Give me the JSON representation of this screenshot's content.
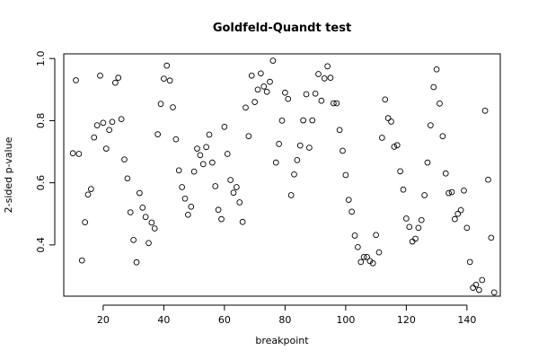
{
  "chart_data": {
    "type": "scatter",
    "title": "Goldfeld-Quandt test",
    "xlabel": "breakpoint",
    "ylabel": "2-sided p-value",
    "xlim": [
      7,
      151
    ],
    "ylim": [
      0.235,
      1.015
    ],
    "xticks": [
      20,
      40,
      60,
      80,
      100,
      120,
      140
    ],
    "yticks": [
      0.4,
      0.6,
      0.8,
      1.0
    ],
    "ytick_labels": [
      "0.4",
      "0.6",
      "0.8",
      "1.0"
    ],
    "grid": false,
    "legend": "none",
    "x": [
      10,
      11,
      12,
      13,
      14,
      15,
      16,
      17,
      18,
      19,
      20,
      21,
      22,
      23,
      24,
      25,
      26,
      27,
      28,
      29,
      30,
      31,
      32,
      33,
      34,
      35,
      36,
      37,
      38,
      39,
      40,
      41,
      42,
      43,
      44,
      45,
      46,
      47,
      48,
      49,
      50,
      51,
      52,
      53,
      54,
      55,
      56,
      57,
      58,
      59,
      60,
      61,
      62,
      63,
      64,
      65,
      66,
      67,
      68,
      69,
      70,
      71,
      72,
      73,
      74,
      75,
      76,
      77,
      78,
      79,
      80,
      81,
      82,
      83,
      84,
      85,
      86,
      87,
      88,
      89,
      90,
      91,
      92,
      93,
      94,
      95,
      96,
      97,
      98,
      99,
      100,
      101,
      102,
      103,
      104,
      105,
      106,
      107,
      108,
      109,
      110,
      111,
      112,
      113,
      114,
      115,
      116,
      117,
      118,
      119,
      120,
      121,
      122,
      123,
      124,
      125,
      126,
      127,
      128,
      129,
      130,
      131,
      132,
      133,
      134,
      135,
      136,
      137,
      138,
      139,
      140,
      141,
      142,
      143,
      144,
      145,
      146,
      147,
      148,
      149
    ],
    "y": [
      0.695,
      0.93,
      0.693,
      0.35,
      0.473,
      0.562,
      0.58,
      0.746,
      0.785,
      0.945,
      0.793,
      0.71,
      0.77,
      0.796,
      0.922,
      0.938,
      0.805,
      0.675,
      0.614,
      0.505,
      0.416,
      0.344,
      0.567,
      0.52,
      0.49,
      0.406,
      0.472,
      0.453,
      0.756,
      0.854,
      0.935,
      0.977,
      0.929,
      0.843,
      0.74,
      0.64,
      0.586,
      0.549,
      0.497,
      0.523,
      0.636,
      0.71,
      0.689,
      0.66,
      0.715,
      0.755,
      0.665,
      0.589,
      0.513,
      0.483,
      0.78,
      0.693,
      0.609,
      0.568,
      0.586,
      0.537,
      0.474,
      0.842,
      0.75,
      0.945,
      0.86,
      0.9,
      0.952,
      0.91,
      0.893,
      0.925,
      0.993,
      0.665,
      0.725,
      0.8,
      0.89,
      0.87,
      0.56,
      0.627,
      0.673,
      0.72,
      0.801,
      0.885,
      0.713,
      0.801,
      0.887,
      0.95,
      0.864,
      0.936,
      0.975,
      0.938,
      0.856,
      0.856,
      0.77,
      0.703,
      0.625,
      0.545,
      0.507,
      0.43,
      0.393,
      0.345,
      0.361,
      0.361,
      0.348,
      0.341,
      0.432,
      0.376,
      0.745,
      0.868,
      0.808,
      0.797,
      0.716,
      0.721,
      0.637,
      0.578,
      0.485,
      0.458,
      0.411,
      0.42,
      0.455,
      0.48,
      0.56,
      0.665,
      0.785,
      0.908,
      0.965,
      0.855,
      0.75,
      0.63,
      0.567,
      0.57,
      0.483,
      0.5,
      0.512,
      0.575,
      0.455,
      0.345,
      0.262,
      0.272,
      0.255,
      0.287,
      0.832,
      0.61,
      0.423,
      0.247
    ]
  }
}
